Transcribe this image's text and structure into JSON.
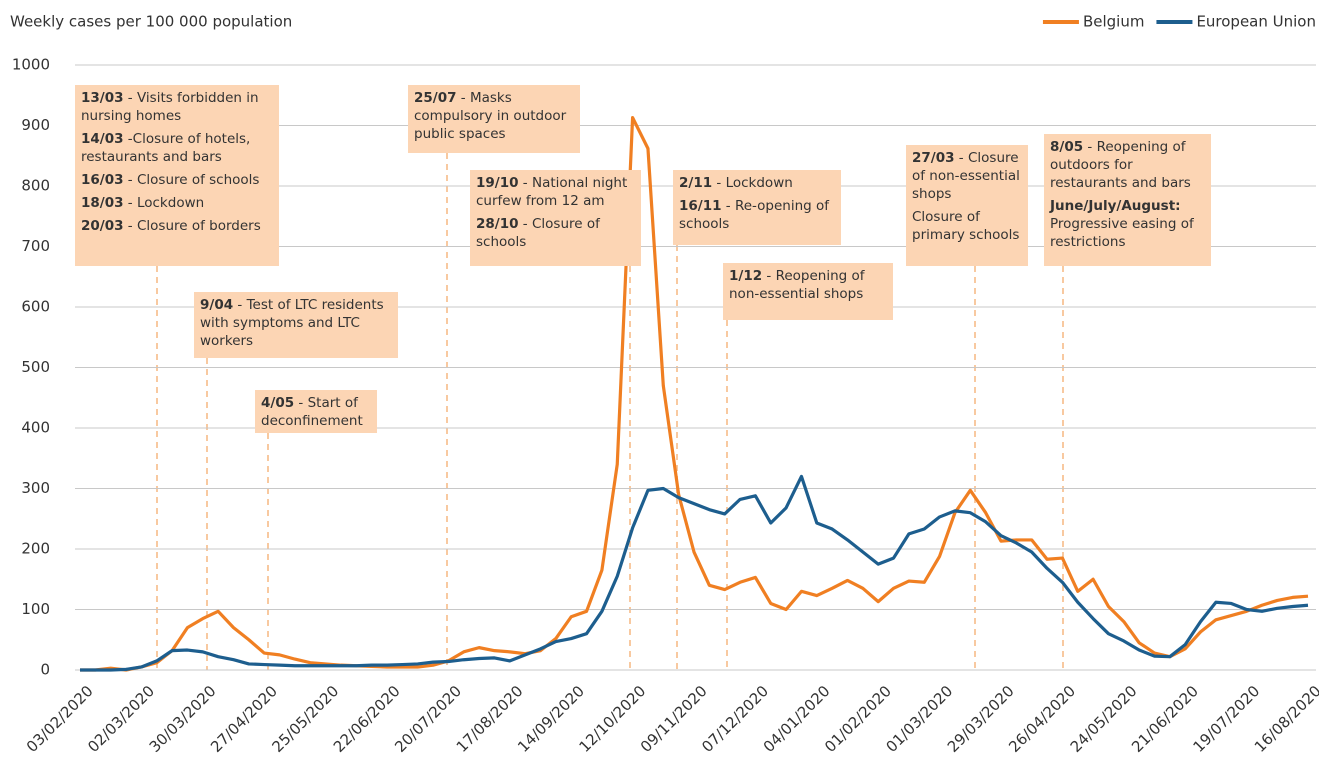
{
  "chart_data": {
    "type": "line",
    "y_label": "Weekly cases per 100 000 population",
    "legend": "top-right",
    "categories": [
      "03/02/2020",
      null,
      null,
      null,
      "02/03/2020",
      null,
      null,
      null,
      "30/03/2020",
      null,
      null,
      null,
      "27/04/2020",
      null,
      null,
      null,
      "25/05/2020",
      null,
      null,
      null,
      "22/06/2020",
      null,
      null,
      null,
      "20/07/2020",
      null,
      null,
      null,
      "17/08/2020",
      null,
      null,
      null,
      "14/09/2020",
      null,
      null,
      null,
      "12/10/2020",
      null,
      null,
      null,
      "09/11/2020",
      null,
      null,
      null,
      "07/12/2020",
      null,
      null,
      null,
      "04/01/2020",
      null,
      null,
      null,
      "01/02/2020",
      null,
      null,
      null,
      "01/03/2020",
      null,
      null,
      null,
      "29/03/2020",
      null,
      null,
      null,
      "26/04/2020",
      null,
      null,
      null,
      "24/05/2020",
      null,
      null,
      null,
      "21/06/2020",
      null,
      null,
      null,
      "19/07/2020",
      null,
      null,
      null,
      "16/08/2020"
    ],
    "series": [
      {
        "name": "Belgium",
        "color": "#f07f22",
        "values": [
          0,
          0,
          3,
          0,
          5,
          12,
          32,
          70,
          85,
          97,
          70,
          50,
          28,
          25,
          18,
          12,
          10,
          8,
          7,
          6,
          5,
          5,
          5,
          8,
          15,
          30,
          37,
          32,
          30,
          27,
          32,
          52,
          88,
          97,
          165,
          340,
          913,
          862,
          470,
          290,
          195,
          140,
          133,
          145,
          153,
          110,
          100,
          130,
          123,
          135,
          148,
          135,
          113,
          135,
          147,
          145,
          188,
          260,
          297,
          260,
          213,
          215,
          215,
          183,
          185,
          130,
          150,
          105,
          80,
          45,
          28,
          22,
          35,
          63,
          83,
          90,
          97,
          107,
          115,
          120,
          122
        ]
      },
      {
        "name": "European Union",
        "color": "#1d5e8e",
        "values": [
          0,
          0,
          0,
          1,
          5,
          15,
          32,
          33,
          30,
          22,
          17,
          10,
          9,
          8,
          7,
          7,
          7,
          7,
          7,
          8,
          8,
          9,
          10,
          13,
          14,
          17,
          19,
          20,
          15,
          25,
          35,
          47,
          52,
          60,
          97,
          155,
          235,
          297,
          300,
          285,
          275,
          265,
          258,
          282,
          288,
          243,
          268,
          320,
          243,
          233,
          215,
          195,
          175,
          185,
          225,
          233,
          253,
          263,
          260,
          245,
          222,
          210,
          195,
          168,
          145,
          112,
          85,
          60,
          48,
          33,
          23,
          22,
          42,
          80,
          112,
          110,
          100,
          97,
          102,
          105,
          107
        ]
      }
    ],
    "ylim": [
      0,
      1000
    ],
    "yticks": [
      0,
      100,
      200,
      300,
      400,
      500,
      600,
      700,
      800,
      900,
      1000
    ],
    "grid": true,
    "annotations": [
      {
        "entries": [
          {
            "date": "13/03",
            "text": " - Visits forbidden in nursing homes"
          },
          {
            "date": "14/03",
            "text": " -Closure of hotels, restaurants and bars"
          },
          {
            "date": "16/03",
            "text": " - Closure of schools"
          },
          {
            "date": "18/03",
            "text": " - Lockdown"
          },
          {
            "date": "20/03",
            "text": " - Closure of borders"
          }
        ]
      },
      {
        "entries": [
          {
            "date": "9/04",
            "text": " - Test of LTC residents with symptoms and LTC workers"
          }
        ]
      },
      {
        "entries": [
          {
            "date": "4/05",
            "text": " - Start of deconfinement"
          }
        ]
      },
      {
        "entries": [
          {
            "date": "25/07",
            "text": " - Masks compulsory in outdoor public spaces"
          }
        ]
      },
      {
        "entries": [
          {
            "date": "19/10",
            "text": " - National night curfew from 12 am"
          },
          {
            "date": "28/10",
            "text": " - Closure of schools"
          }
        ]
      },
      {
        "entries": [
          {
            "date": "2/11",
            "text": " - Lockdown"
          },
          {
            "date": "16/11",
            "text": " - Re-opening of schools"
          }
        ]
      },
      {
        "entries": [
          {
            "date": "1/12",
            "text": " - Reopening of non-essential shops"
          }
        ]
      },
      {
        "entries": [
          {
            "date": "27/03",
            "text": " - Closure of non-essential shops"
          },
          {
            "text": "Closure of primary schools"
          }
        ]
      },
      {
        "entries": [
          {
            "date": "8/05",
            "text": " - Reopening of outdoors for restaurants and bars"
          },
          {
            "date": "June/July/August:",
            "text": " Progressive easing of restrictions"
          }
        ]
      }
    ]
  }
}
